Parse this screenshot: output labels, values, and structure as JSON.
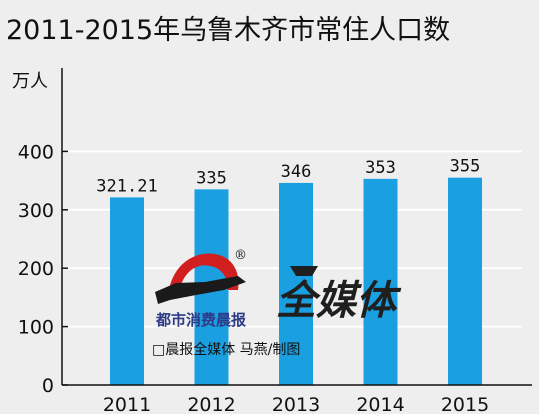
{
  "chart_data": {
    "type": "bar",
    "title": "2011-2015年乌鲁木齐市常住人口数",
    "ylabel": "万人",
    "categories": [
      "2011",
      "2012",
      "2013",
      "2014",
      "2015"
    ],
    "values": [
      321.21,
      335,
      346,
      353,
      355
    ],
    "value_labels": [
      "321.21",
      "335",
      "346",
      "353",
      "355"
    ],
    "yticks": [
      "0",
      "100",
      "200",
      "300",
      "400"
    ],
    "ylim": [
      0,
      500
    ],
    "grid": true,
    "colors": {
      "bar": "#1aa0e0",
      "grid": "#ffffff",
      "axis": "#111111",
      "background": "#eeeeee"
    }
  },
  "watermark": {
    "logo_text": "都市消费晨报",
    "registered_mark": "®",
    "brand_text": "全媒体",
    "credit": "□晨报全媒体  马燕/制图"
  }
}
